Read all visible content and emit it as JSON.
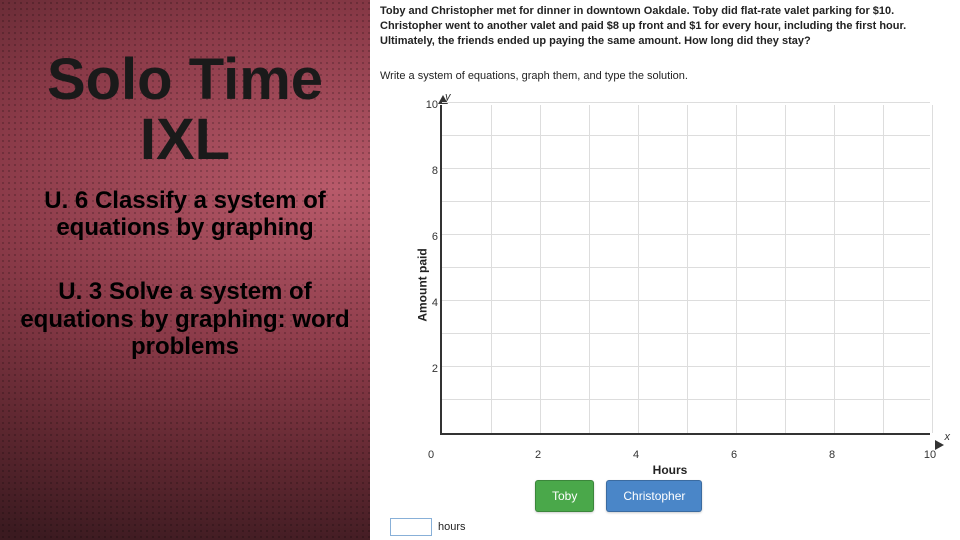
{
  "left": {
    "title_line1": "Solo Time",
    "title_line2": "IXL",
    "topic1": "U. 6 Classify a system of equations by graphing",
    "topic2": "U. 3 Solve a system of equations by graphing: word problems"
  },
  "right": {
    "problem": "Toby and Christopher met for dinner in downtown Oakdale. Toby did flat-rate valet parking for $10. Christopher went to another valet and paid $8 up front and $1 for every hour, including the first hour. Ultimately, the friends ended up paying the same amount. How long did they stay?",
    "instruction": "Write a system of equations, graph them, and type the solution.",
    "chart": {
      "type": "line",
      "xlabel": "Hours",
      "ylabel": "Amount paid",
      "y_axis_letter": "y",
      "x_axis_letter": "x",
      "xlim": [
        0,
        10
      ],
      "ylim": [
        0,
        10
      ],
      "xtick_step": 2,
      "ytick_step": 2,
      "minor_step": 1,
      "grid_color": "#dddddd",
      "axis_color": "#333333",
      "background_color": "#ffffff",
      "label_fontsize": 12,
      "tick_fontsize": 11,
      "legend": [
        {
          "label": "Toby",
          "color": "#4aa84a"
        },
        {
          "label": "Christopher",
          "color": "#4a86c8"
        }
      ]
    },
    "answer_unit": "hours"
  }
}
